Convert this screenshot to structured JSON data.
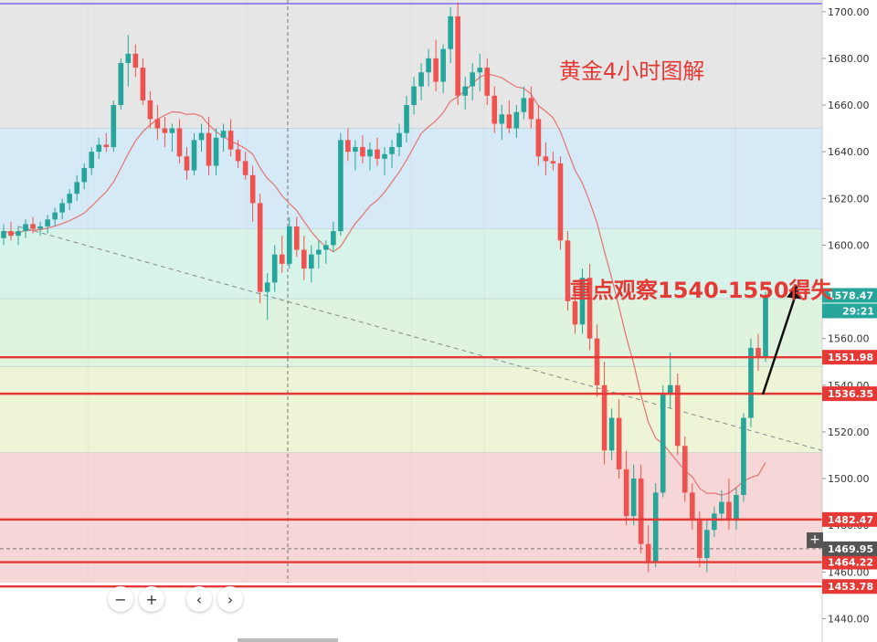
{
  "chart_data": {
    "type": "candlestick",
    "title": "黄金4小时图解",
    "annotation": "重点观察1540-1550得失",
    "y_axis": {
      "ylim": [
        1430,
        1705
      ],
      "ticks": [
        1700,
        1680,
        1660,
        1640,
        1620,
        1600,
        1580,
        1560,
        1540,
        1520,
        1500,
        1480,
        1460,
        1440
      ],
      "tick_labels": [
        "1700.00",
        "1680.00",
        "1660.00",
        "1640.00",
        "1620.00",
        "1600.00",
        "1580.00",
        "1560.00",
        "1540.00",
        "1520.00",
        "1500.00",
        "1480.00",
        "1460.00",
        "1440.00"
      ]
    },
    "current_price": "1578.47",
    "countdown": "29:21",
    "crosshair_price": "1469.95",
    "levels": [
      {
        "value": 1551.98,
        "label": "1551.98"
      },
      {
        "value": 1536.35,
        "label": "1536.35"
      },
      {
        "value": 1482.47,
        "label": "1482.47"
      },
      {
        "value": 1464.22,
        "label": "1464.22"
      },
      {
        "value": 1453.78,
        "label": "1453.78"
      }
    ],
    "fib_zones": [
      {
        "from": 1705,
        "to": 1650,
        "color": "#e6e6e6"
      },
      {
        "from": 1650,
        "to": 1607,
        "color": "#d6e9f6"
      },
      {
        "from": 1607,
        "to": 1577,
        "color": "#d8f3ea"
      },
      {
        "from": 1577,
        "to": 1548,
        "color": "#dff3df"
      },
      {
        "from": 1548,
        "to": 1511,
        "color": "#eef5d6"
      },
      {
        "from": 1511,
        "to": 1453,
        "color": "#f6d6d6"
      }
    ],
    "ohlc": [
      [
        1603,
        1609,
        1600,
        1606
      ],
      [
        1606,
        1610,
        1602,
        1604
      ],
      [
        1604,
        1608,
        1600,
        1606
      ],
      [
        1606,
        1611,
        1603,
        1609
      ],
      [
        1609,
        1612,
        1605,
        1607
      ],
      [
        1607,
        1610,
        1604,
        1608
      ],
      [
        1608,
        1613,
        1605,
        1611
      ],
      [
        1611,
        1616,
        1608,
        1614
      ],
      [
        1614,
        1620,
        1611,
        1618
      ],
      [
        1618,
        1624,
        1615,
        1622
      ],
      [
        1622,
        1630,
        1619,
        1627
      ],
      [
        1627,
        1635,
        1624,
        1633
      ],
      [
        1633,
        1642,
        1630,
        1640
      ],
      [
        1640,
        1646,
        1637,
        1643
      ],
      [
        1643,
        1648,
        1640,
        1642
      ],
      [
        1642,
        1662,
        1640,
        1660
      ],
      [
        1660,
        1680,
        1658,
        1678
      ],
      [
        1678,
        1690,
        1668,
        1682
      ],
      [
        1682,
        1686,
        1672,
        1676
      ],
      [
        1676,
        1680,
        1660,
        1662
      ],
      [
        1662,
        1666,
        1650,
        1654
      ],
      [
        1654,
        1660,
        1645,
        1650
      ],
      [
        1650,
        1655,
        1642,
        1648
      ],
      [
        1648,
        1652,
        1640,
        1650
      ],
      [
        1650,
        1654,
        1635,
        1638
      ],
      [
        1638,
        1642,
        1628,
        1632
      ],
      [
        1632,
        1648,
        1630,
        1645
      ],
      [
        1645,
        1652,
        1640,
        1648
      ],
      [
        1648,
        1655,
        1630,
        1634
      ],
      [
        1634,
        1650,
        1630,
        1646
      ],
      [
        1646,
        1652,
        1640,
        1649
      ],
      [
        1649,
        1654,
        1638,
        1641
      ],
      [
        1641,
        1645,
        1633,
        1636
      ],
      [
        1636,
        1640,
        1628,
        1630
      ],
      [
        1630,
        1634,
        1610,
        1618
      ],
      [
        1618,
        1622,
        1575,
        1580
      ],
      [
        1580,
        1588,
        1568,
        1584
      ],
      [
        1584,
        1600,
        1580,
        1596
      ],
      [
        1596,
        1604,
        1588,
        1592
      ],
      [
        1592,
        1612,
        1590,
        1608
      ],
      [
        1608,
        1612,
        1595,
        1598
      ],
      [
        1598,
        1604,
        1585,
        1590
      ],
      [
        1590,
        1600,
        1584,
        1596
      ],
      [
        1596,
        1602,
        1590,
        1598
      ],
      [
        1598,
        1602,
        1592,
        1600
      ],
      [
        1600,
        1610,
        1597,
        1606
      ],
      [
        1606,
        1648,
        1604,
        1645
      ],
      [
        1645,
        1650,
        1636,
        1640
      ],
      [
        1640,
        1645,
        1632,
        1642
      ],
      [
        1642,
        1647,
        1635,
        1638
      ],
      [
        1638,
        1644,
        1632,
        1641
      ],
      [
        1641,
        1646,
        1634,
        1637
      ],
      [
        1637,
        1642,
        1630,
        1639
      ],
      [
        1639,
        1645,
        1633,
        1642
      ],
      [
        1642,
        1652,
        1638,
        1648
      ],
      [
        1648,
        1664,
        1644,
        1660
      ],
      [
        1660,
        1672,
        1656,
        1668
      ],
      [
        1668,
        1678,
        1662,
        1674
      ],
      [
        1674,
        1684,
        1668,
        1680
      ],
      [
        1680,
        1688,
        1666,
        1670
      ],
      [
        1670,
        1686,
        1665,
        1684
      ],
      [
        1684,
        1702,
        1678,
        1698
      ],
      [
        1698,
        1704,
        1660,
        1664
      ],
      [
        1664,
        1672,
        1658,
        1668
      ],
      [
        1668,
        1678,
        1662,
        1674
      ],
      [
        1674,
        1682,
        1666,
        1676
      ],
      [
        1676,
        1680,
        1660,
        1664
      ],
      [
        1664,
        1668,
        1648,
        1652
      ],
      [
        1652,
        1660,
        1645,
        1656
      ],
      [
        1656,
        1662,
        1648,
        1650
      ],
      [
        1650,
        1660,
        1646,
        1657
      ],
      [
        1657,
        1668,
        1654,
        1663
      ],
      [
        1663,
        1668,
        1650,
        1654
      ],
      [
        1654,
        1660,
        1634,
        1638
      ],
      [
        1638,
        1644,
        1630,
        1636
      ],
      [
        1636,
        1640,
        1632,
        1635
      ],
      [
        1635,
        1638,
        1598,
        1602
      ],
      [
        1602,
        1606,
        1572,
        1576
      ],
      [
        1576,
        1582,
        1562,
        1566
      ],
      [
        1566,
        1590,
        1562,
        1586
      ],
      [
        1586,
        1592,
        1555,
        1560
      ],
      [
        1560,
        1566,
        1535,
        1540
      ],
      [
        1540,
        1550,
        1506,
        1512
      ],
      [
        1512,
        1530,
        1508,
        1526
      ],
      [
        1526,
        1534,
        1500,
        1504
      ],
      [
        1504,
        1512,
        1480,
        1484
      ],
      [
        1484,
        1506,
        1480,
        1500
      ],
      [
        1500,
        1506,
        1468,
        1472
      ],
      [
        1472,
        1480,
        1460,
        1464
      ],
      [
        1464,
        1498,
        1462,
        1494
      ],
      [
        1494,
        1540,
        1492,
        1536
      ],
      [
        1536,
        1554,
        1530,
        1540
      ],
      [
        1540,
        1545,
        1510,
        1514
      ],
      [
        1514,
        1518,
        1490,
        1494
      ],
      [
        1494,
        1498,
        1478,
        1482
      ],
      [
        1482,
        1486,
        1462,
        1466
      ],
      [
        1466,
        1482,
        1460,
        1478
      ],
      [
        1478,
        1488,
        1475,
        1485
      ],
      [
        1485,
        1495,
        1482,
        1490
      ],
      [
        1490,
        1500,
        1478,
        1482
      ],
      [
        1482,
        1496,
        1478,
        1493
      ],
      [
        1493,
        1528,
        1490,
        1526
      ],
      [
        1526,
        1560,
        1522,
        1556
      ],
      [
        1556,
        1562,
        1546,
        1552
      ],
      [
        1552,
        1580,
        1550,
        1578
      ]
    ]
  },
  "navigation": {
    "zoom_out": "−",
    "zoom_in": "+",
    "scroll_left": "‹",
    "scroll_right": "›"
  },
  "colors": {
    "up": "#26a69a",
    "down": "#ef5350",
    "level_line": "#e53935",
    "ma_line": "#e57373",
    "trend_line": "#888888",
    "arrow": "#111111",
    "current_tag": "#26a69a",
    "cross_tag": "#555555"
  }
}
